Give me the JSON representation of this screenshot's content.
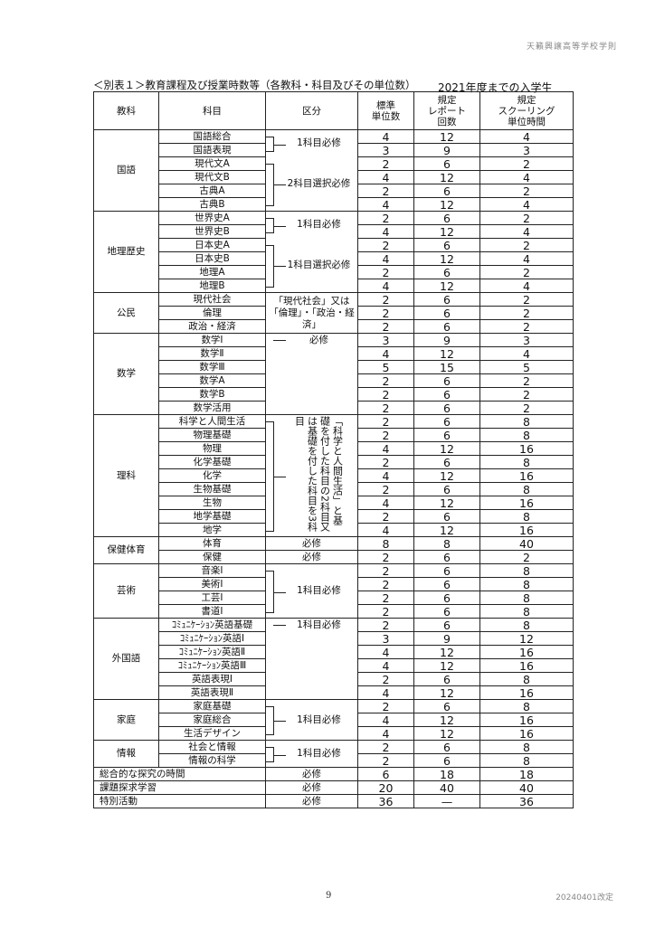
{
  "header": {
    "school_rules": "天籟興譲高等学校学則"
  },
  "caption": "＜別表１＞教育課程及び授業時数等（各教科・科目及びその単位数）",
  "cohort": "2021年度までの入学生",
  "columns": [
    "教科",
    "科目",
    "区分",
    "標準\n単位数",
    "規定\nレポート\n回数",
    "規定\nスクーリング\n単位時間"
  ],
  "groups": [
    {
      "subject": "国語",
      "kubun": [
        {
          "text": "1科目必修",
          "span": 2,
          "bracket": true
        },
        {
          "text": "2科目選択必修",
          "span": 4,
          "bracket": true
        }
      ],
      "rows": [
        [
          "国語総合",
          "4",
          "12",
          "4"
        ],
        [
          "国語表現",
          "3",
          "9",
          "3"
        ],
        [
          "現代文A",
          "2",
          "6",
          "2"
        ],
        [
          "現代文B",
          "4",
          "12",
          "4"
        ],
        [
          "古典A",
          "2",
          "6",
          "2"
        ],
        [
          "古典B",
          "4",
          "12",
          "4"
        ]
      ]
    },
    {
      "subject": "地理歴史",
      "kubun": [
        {
          "text": "1科目必修",
          "span": 2,
          "bracket": true
        },
        {
          "text": "1科目選択必修",
          "span": 4,
          "bracket": true
        }
      ],
      "rows": [
        [
          "世界史A",
          "2",
          "6",
          "2"
        ],
        [
          "世界史B",
          "4",
          "12",
          "4"
        ],
        [
          "日本史A",
          "2",
          "6",
          "2"
        ],
        [
          "日本史B",
          "4",
          "12",
          "4"
        ],
        [
          "地理A",
          "2",
          "6",
          "2"
        ],
        [
          "地理B",
          "4",
          "12",
          "4"
        ]
      ]
    },
    {
      "subject": "公民",
      "kubun": [
        {
          "text": "「現代社会」又は「倫理」・「政治・経済」",
          "span": 3
        }
      ],
      "rows": [
        [
          "現代社会",
          "2",
          "6",
          "2"
        ],
        [
          "倫理",
          "2",
          "6",
          "2"
        ],
        [
          "政治・経済",
          "2",
          "6",
          "2"
        ]
      ]
    },
    {
      "subject": "数学",
      "kubun": [
        {
          "text": "必修",
          "span": 1,
          "line": true
        },
        {
          "text": "",
          "span": 5
        }
      ],
      "rows": [
        [
          "数学Ⅰ",
          "3",
          "9",
          "3"
        ],
        [
          "数学Ⅱ",
          "4",
          "12",
          "4"
        ],
        [
          "数学Ⅲ",
          "5",
          "15",
          "5"
        ],
        [
          "数学A",
          "2",
          "6",
          "2"
        ],
        [
          "数学B",
          "2",
          "6",
          "2"
        ],
        [
          "数学活用",
          "2",
          "6",
          "2"
        ]
      ]
    },
    {
      "subject": "理科",
      "kubun": [
        {
          "text": "「科学と人間生活」と基礎を付した科目の2科目又は基礎を付した科目を3科目",
          "span": 9,
          "vertical": true,
          "bracket": true
        }
      ],
      "rows": [
        [
          "科学と人間生活",
          "2",
          "6",
          "8"
        ],
        [
          "物理基礎",
          "2",
          "6",
          "8"
        ],
        [
          "物理",
          "4",
          "12",
          "16"
        ],
        [
          "化学基礎",
          "2",
          "6",
          "8"
        ],
        [
          "化学",
          "4",
          "12",
          "16"
        ],
        [
          "生物基礎",
          "2",
          "6",
          "8"
        ],
        [
          "生物",
          "4",
          "12",
          "16"
        ],
        [
          "地学基礎",
          "2",
          "6",
          "8"
        ],
        [
          "地学",
          "4",
          "12",
          "16"
        ]
      ]
    },
    {
      "subject": "保健体育",
      "kubun": [
        {
          "text": "必修",
          "span": 1,
          "sep": true
        },
        {
          "text": "必修",
          "span": 1,
          "sep": true
        }
      ],
      "rows": [
        [
          "体育",
          "8",
          "8",
          "40"
        ],
        [
          "保健",
          "2",
          "6",
          "2"
        ]
      ]
    },
    {
      "subject": "芸術",
      "kubun": [
        {
          "text": "1科目必修",
          "span": 4,
          "bracket": true
        }
      ],
      "rows": [
        [
          "音楽Ⅰ",
          "2",
          "6",
          "8"
        ],
        [
          "美術Ⅰ",
          "2",
          "6",
          "8"
        ],
        [
          "工芸Ⅰ",
          "2",
          "6",
          "8"
        ],
        [
          "書道Ⅰ",
          "2",
          "6",
          "8"
        ]
      ]
    },
    {
      "subject": "外国語",
      "kubun": [
        {
          "text": "1科目必修",
          "span": 1,
          "line": true
        },
        {
          "text": "",
          "span": 5
        }
      ],
      "rows": [
        [
          "ｺﾐｭﾆｹｰｼｮﾝ英語基礎",
          "2",
          "6",
          "8"
        ],
        [
          "ｺﾐｭﾆｹｰｼｮﾝ英語Ⅰ",
          "3",
          "9",
          "12"
        ],
        [
          "ｺﾐｭﾆｹｰｼｮﾝ英語Ⅱ",
          "4",
          "12",
          "16"
        ],
        [
          "ｺﾐｭﾆｹｰｼｮﾝ英語Ⅲ",
          "4",
          "12",
          "16"
        ],
        [
          "英語表現Ⅰ",
          "2",
          "6",
          "8"
        ],
        [
          "英語表現Ⅱ",
          "4",
          "12",
          "16"
        ]
      ]
    },
    {
      "subject": "家庭",
      "kubun": [
        {
          "text": "1科目必修",
          "span": 3,
          "bracket": true
        }
      ],
      "rows": [
        [
          "家庭基礎",
          "2",
          "6",
          "8"
        ],
        [
          "家庭総合",
          "4",
          "12",
          "16"
        ],
        [
          "生活デザイン",
          "4",
          "12",
          "16"
        ]
      ]
    },
    {
      "subject": "情報",
      "kubun": [
        {
          "text": "1科目必修",
          "span": 2,
          "bracket": true
        }
      ],
      "rows": [
        [
          "社会と情報",
          "2",
          "6",
          "8"
        ],
        [
          "情報の科学",
          "2",
          "6",
          "8"
        ]
      ]
    }
  ],
  "other_rows": [
    [
      "総合的な探究の時間",
      "必修",
      "6",
      "18",
      "18"
    ],
    [
      "課題探求学習",
      "必修",
      "20",
      "40",
      "40"
    ],
    [
      "特別活動",
      "必修",
      "36",
      "—",
      "36"
    ]
  ],
  "footer": {
    "page_number": "9",
    "revision": "20240401改定"
  }
}
